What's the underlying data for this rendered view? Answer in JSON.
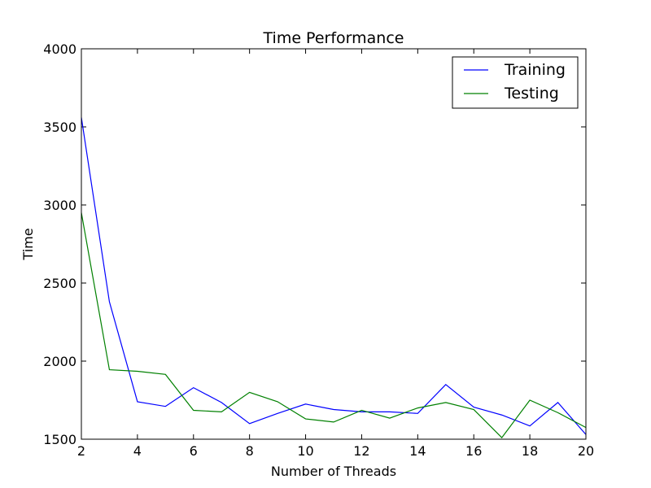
{
  "chart_data": {
    "type": "line",
    "title": "Time Performance",
    "xlabel": "Number of Threads",
    "ylabel": "Time",
    "xlim": [
      2,
      20
    ],
    "ylim": [
      1500,
      4000
    ],
    "xticks": [
      2,
      4,
      6,
      8,
      10,
      12,
      14,
      16,
      18,
      20
    ],
    "yticks": [
      1500,
      2000,
      2500,
      3000,
      3500,
      4000
    ],
    "x": [
      2,
      3,
      4,
      5,
      6,
      7,
      8,
      9,
      10,
      11,
      12,
      13,
      14,
      15,
      16,
      17,
      18,
      19,
      20
    ],
    "series": [
      {
        "name": "Training",
        "color": "#0000ff",
        "values": [
          3560,
          2380,
          1740,
          1710,
          1830,
          1735,
          1600,
          1665,
          1725,
          1690,
          1675,
          1675,
          1665,
          1850,
          1705,
          1655,
          1585,
          1735,
          1530
        ]
      },
      {
        "name": "Testing",
        "color": "#008000",
        "values": [
          2950,
          1945,
          1935,
          1915,
          1685,
          1675,
          1800,
          1740,
          1630,
          1610,
          1685,
          1635,
          1700,
          1735,
          1690,
          1510,
          1750,
          1670,
          1575
        ]
      }
    ],
    "grid": false,
    "legend_position": "top-right"
  }
}
